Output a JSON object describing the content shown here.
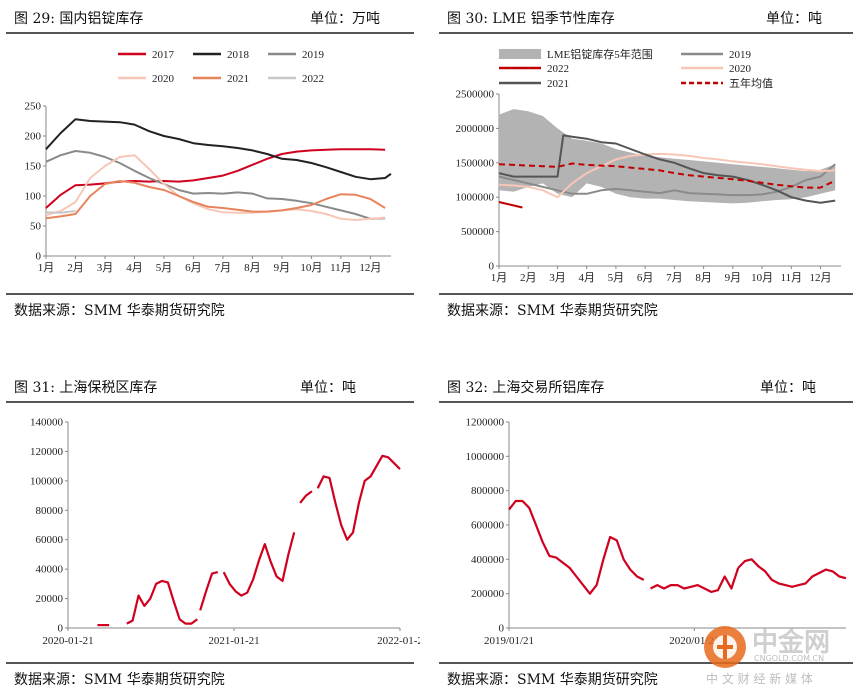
{
  "panels": [
    {
      "title": "图 29:      国内铝锭库存",
      "unit": "单位：万吨",
      "source": "数据来源：SMM  华泰期货研究院"
    },
    {
      "title": "图 30:      LME 铝季节性库存",
      "unit": "单位：吨",
      "source": "数据来源：SMM  华泰期货研究院"
    },
    {
      "title": "图 31:      上海保税区库存",
      "unit": "单位：吨",
      "source": "数据来源：SMM  华泰期货研究院"
    },
    {
      "title": "图 32:      上海交易所铝库存",
      "unit": "单位：吨",
      "source": "数据来源：SMM  华泰期货研究院"
    }
  ],
  "watermark": {
    "name": "中金网",
    "site": "CNGOLD.COM.CN",
    "tagline": "中 文 财 经 新 媒 体"
  },
  "chart_data": [
    {
      "type": "line",
      "categories": [
        "1月",
        "2月",
        "3月",
        "4月",
        "5月",
        "6月",
        "7月",
        "8月",
        "9月",
        "10月",
        "11月",
        "12月"
      ],
      "ylim": [
        0,
        250
      ],
      "yticks": [
        0,
        50,
        100,
        150,
        200,
        250
      ],
      "legend": "top",
      "series": [
        {
          "name": "2017",
          "color": "#d0001f",
          "x": [
            1,
            1.5,
            2,
            2.5,
            3,
            3.5,
            4,
            4.5,
            5,
            5.5,
            6,
            6.5,
            7,
            7.5,
            8,
            8.5,
            9,
            9.5,
            10,
            10.5,
            11,
            11.5,
            12,
            12.5
          ],
          "values": [
            80,
            102,
            118,
            119,
            121,
            124,
            125,
            124,
            125,
            124,
            126,
            130,
            134,
            142,
            152,
            162,
            170,
            174,
            176,
            177,
            178,
            178,
            178,
            177
          ]
        },
        {
          "name": "2018",
          "color": "#222222",
          "x": [
            1,
            1.5,
            2,
            2.5,
            3,
            3.5,
            4,
            4.5,
            5,
            5.5,
            6,
            6.5,
            7,
            7.5,
            8,
            8.5,
            9,
            9.5,
            10,
            10.5,
            11,
            11.5,
            12,
            12.5,
            12.7
          ],
          "values": [
            178,
            205,
            228,
            225,
            224,
            223,
            219,
            208,
            200,
            195,
            188,
            185,
            183,
            180,
            176,
            170,
            162,
            160,
            155,
            148,
            140,
            132,
            128,
            130,
            137
          ]
        },
        {
          "name": "2019",
          "color": "#8a8a8a",
          "x": [
            1,
            1.5,
            2,
            2.5,
            3,
            3.5,
            4,
            4.5,
            5,
            5.5,
            6,
            6.5,
            7,
            7.5,
            8,
            8.5,
            9,
            9.5,
            10,
            10.5,
            11,
            11.5,
            12,
            12.5
          ],
          "values": [
            157,
            168,
            175,
            172,
            165,
            155,
            142,
            130,
            120,
            110,
            104,
            105,
            104,
            106,
            104,
            96,
            95,
            92,
            88,
            82,
            76,
            70,
            62,
            63
          ]
        },
        {
          "name": "2020",
          "color": "#f7c6b6",
          "x": [
            1,
            1.5,
            2,
            2.5,
            3,
            3.5,
            4,
            4.5,
            5,
            5.5,
            6,
            6.5,
            7,
            7.5,
            8,
            8.5,
            9,
            9.5,
            10,
            10.5,
            11,
            11.5,
            12,
            12.5
          ],
          "values": [
            68,
            75,
            90,
            130,
            150,
            165,
            168,
            145,
            120,
            100,
            88,
            78,
            73,
            72,
            72,
            74,
            76,
            78,
            75,
            70,
            62,
            60,
            62,
            64
          ]
        },
        {
          "name": "2021",
          "color": "#e8845d",
          "x": [
            1,
            1.5,
            2,
            2.5,
            3,
            3.5,
            4,
            4.5,
            5,
            5.5,
            6,
            6.5,
            7,
            7.5,
            8,
            8.5,
            9,
            9.5,
            10,
            10.5,
            11,
            11.5,
            12,
            12.5
          ],
          "values": [
            63,
            66,
            70,
            100,
            120,
            125,
            122,
            115,
            110,
            100,
            90,
            82,
            80,
            77,
            74,
            74,
            76,
            80,
            85,
            95,
            103,
            102,
            95,
            80
          ]
        },
        {
          "name": "2022",
          "color": "#c8c8c8",
          "x": [
            1,
            1.5,
            2
          ],
          "values": [
            73,
            72,
            75
          ]
        }
      ]
    },
    {
      "type": "line",
      "categories": [
        "1月",
        "2月",
        "3月",
        "4月",
        "5月",
        "6月",
        "7月",
        "8月",
        "9月",
        "10月",
        "11月",
        "12月"
      ],
      "ylim": [
        0,
        2500000
      ],
      "yticks": [
        0,
        500000,
        1000000,
        1500000,
        2000000,
        2500000
      ],
      "legend": "top",
      "band": {
        "name": "LME铝锭库存5年范围",
        "color": "#b3b3b3",
        "x": [
          1,
          1.5,
          2,
          2.5,
          3,
          3.5,
          4,
          4.5,
          5,
          5.5,
          6,
          6.5,
          7,
          7.5,
          8,
          8.5,
          9,
          9.5,
          10,
          10.5,
          11,
          11.5,
          12,
          12.5
        ],
        "upper": [
          2200000,
          2280000,
          2250000,
          2180000,
          2000000,
          1850000,
          1820000,
          1780000,
          1700000,
          1650000,
          1600000,
          1580000,
          1560000,
          1540000,
          1520000,
          1500000,
          1480000,
          1460000,
          1440000,
          1420000,
          1400000,
          1380000,
          1400000,
          1480000
        ],
        "lower": [
          1100000,
          1080000,
          1150000,
          1200000,
          1050000,
          1000000,
          1200000,
          1150000,
          1050000,
          1000000,
          980000,
          980000,
          960000,
          940000,
          930000,
          920000,
          910000,
          920000,
          940000,
          960000,
          970000,
          1000000,
          1050000,
          1100000
        ]
      },
      "series": [
        {
          "name": "2019",
          "color": "#8a8a8a",
          "x": [
            1,
            1.5,
            2,
            2.5,
            3,
            3.5,
            4,
            4.5,
            5,
            5.5,
            6,
            6.5,
            7,
            7.5,
            8,
            8.5,
            9,
            9.5,
            10,
            10.5,
            11,
            11.5,
            12,
            12.5
          ],
          "values": [
            1300000,
            1250000,
            1200000,
            1150000,
            1100000,
            1050000,
            1050000,
            1100000,
            1120000,
            1100000,
            1080000,
            1060000,
            1100000,
            1060000,
            1050000,
            1040000,
            1030000,
            1030000,
            1040000,
            1080000,
            1150000,
            1250000,
            1300000,
            1480000
          ]
        },
        {
          "name": "2020",
          "color": "#f7c6b6",
          "x": [
            1,
            1.5,
            2,
            2.5,
            3,
            3.5,
            4,
            4.5,
            5,
            5.5,
            6,
            6.5,
            7,
            7.5,
            8,
            8.5,
            9,
            9.5,
            10,
            10.5,
            11,
            11.5,
            12,
            12.5
          ],
          "values": [
            1180000,
            1170000,
            1150000,
            1100000,
            1000000,
            1200000,
            1350000,
            1450000,
            1550000,
            1600000,
            1620000,
            1630000,
            1620000,
            1600000,
            1570000,
            1550000,
            1520000,
            1500000,
            1480000,
            1450000,
            1420000,
            1400000,
            1380000,
            1390000
          ]
        },
        {
          "name": "2021",
          "color": "#555555",
          "x": [
            1,
            1.5,
            2,
            2.5,
            3,
            3.2,
            3.5,
            4,
            4.5,
            5,
            5.5,
            6,
            6.5,
            7,
            7.5,
            8,
            8.5,
            9,
            9.5,
            10,
            10.5,
            11,
            11.5,
            12,
            12.5
          ],
          "values": [
            1350000,
            1300000,
            1300000,
            1300000,
            1300000,
            1900000,
            1880000,
            1850000,
            1800000,
            1780000,
            1700000,
            1620000,
            1550000,
            1500000,
            1420000,
            1350000,
            1320000,
            1300000,
            1250000,
            1180000,
            1100000,
            1000000,
            950000,
            920000,
            950000
          ]
        },
        {
          "name": "2022",
          "color": "#c00000",
          "x": [
            1,
            1.3,
            1.6,
            1.8
          ],
          "values": [
            930000,
            900000,
            870000,
            850000
          ]
        },
        {
          "name": "五年均值",
          "color": "#c00000",
          "dashed": true,
          "x": [
            1,
            1.5,
            2,
            2.5,
            3,
            3.5,
            4,
            4.5,
            5,
            5.5,
            6,
            6.5,
            7,
            7.5,
            8,
            8.5,
            9,
            9.5,
            10,
            10.5,
            11,
            11.5,
            12,
            12.5
          ],
          "values": [
            1480000,
            1470000,
            1460000,
            1450000,
            1440000,
            1490000,
            1470000,
            1460000,
            1450000,
            1430000,
            1410000,
            1390000,
            1350000,
            1320000,
            1300000,
            1280000,
            1260000,
            1240000,
            1210000,
            1180000,
            1160000,
            1140000,
            1140000,
            1240000
          ]
        }
      ]
    },
    {
      "type": "line",
      "xticks": [
        "2020-01-21",
        "2021-01-21",
        "2022-01-2"
      ],
      "ylim": [
        0,
        140000
      ],
      "yticks": [
        0,
        20000,
        40000,
        60000,
        80000,
        100000,
        120000,
        140000
      ],
      "series": [
        {
          "name": "",
          "color": "#d0001f",
          "segments": [
            {
              "x": [
                0.1,
                0.14
              ],
              "values": [
                2000,
                2000
              ]
            },
            {
              "x": [
                0.2,
                0.22,
                0.24,
                0.26,
                0.28,
                0.3,
                0.32,
                0.34,
                0.36,
                0.38,
                0.4,
                0.42,
                0.44
              ],
              "values": [
                3000,
                5000,
                22000,
                15000,
                20000,
                30000,
                32000,
                31000,
                18000,
                6000,
                3000,
                3000,
                6000
              ]
            },
            {
              "x": [
                0.45,
                0.47,
                0.49,
                0.51
              ],
              "values": [
                12000,
                25000,
                37000,
                38000
              ]
            },
            {
              "x": [
                0.53,
                0.55,
                0.57,
                0.59,
                0.61,
                0.63,
                0.65,
                0.67,
                0.69,
                0.71,
                0.73,
                0.75,
                0.77
              ],
              "values": [
                38000,
                30000,
                25000,
                22000,
                24000,
                33000,
                46000,
                57000,
                45000,
                35000,
                32000,
                50000,
                65000
              ]
            },
            {
              "x": [
                0.79,
                0.81,
                0.83
              ],
              "values": [
                85000,
                90000,
                93000
              ]
            },
            {
              "x": [
                0.85,
                0.87,
                0.89,
                0.91,
                0.93,
                0.95,
                0.97,
                0.99,
                1.01,
                1.03,
                1.05,
                1.07,
                1.09,
                1.11,
                1.13
              ],
              "values": [
                95000,
                103000,
                102000,
                85000,
                70000,
                60000,
                65000,
                85000,
                100000,
                103000,
                110000,
                117000,
                116000,
                112000,
                108000
              ]
            }
          ]
        }
      ]
    },
    {
      "type": "line",
      "xticks": [
        "2019/01/21",
        "2020/01/21"
      ],
      "ylim": [
        0,
        1200000
      ],
      "yticks": [
        0,
        200000,
        400000,
        600000,
        800000,
        1000000,
        1200000
      ],
      "series": [
        {
          "name": "",
          "color": "#d0001f",
          "segments": [
            {
              "x": [
                0,
                0.02,
                0.04,
                0.06,
                0.08,
                0.1,
                0.12,
                0.14,
                0.16,
                0.18,
                0.2,
                0.22,
                0.24,
                0.26,
                0.28,
                0.3,
                0.32,
                0.34,
                0.36,
                0.38,
                0.4
              ],
              "values": [
                690000,
                740000,
                740000,
                700000,
                600000,
                500000,
                420000,
                410000,
                380000,
                350000,
                300000,
                250000,
                200000,
                250000,
                400000,
                530000,
                510000,
                400000,
                340000,
                300000,
                280000
              ]
            },
            {
              "x": [
                0.42,
                0.44,
                0.46,
                0.48,
                0.5,
                0.52,
                0.54,
                0.56,
                0.58,
                0.6,
                0.62,
                0.64,
                0.66,
                0.68
              ],
              "values": [
                230000,
                250000,
                230000,
                250000,
                250000,
                230000,
                240000,
                250000,
                230000,
                210000,
                220000,
                300000,
                230000,
                350000
              ]
            },
            {
              "x": [
                0.68,
                0.7,
                0.72,
                0.74,
                0.76,
                0.78,
                0.8,
                0.82,
                0.84,
                0.86,
                0.88,
                0.9,
                0.92,
                0.94,
                0.96,
                0.98,
                1.0
              ],
              "values": [
                350000,
                390000,
                400000,
                360000,
                330000,
                280000,
                260000,
                250000,
                240000,
                250000,
                260000,
                300000,
                320000,
                340000,
                330000,
                300000,
                290000
              ]
            }
          ]
        }
      ]
    }
  ]
}
